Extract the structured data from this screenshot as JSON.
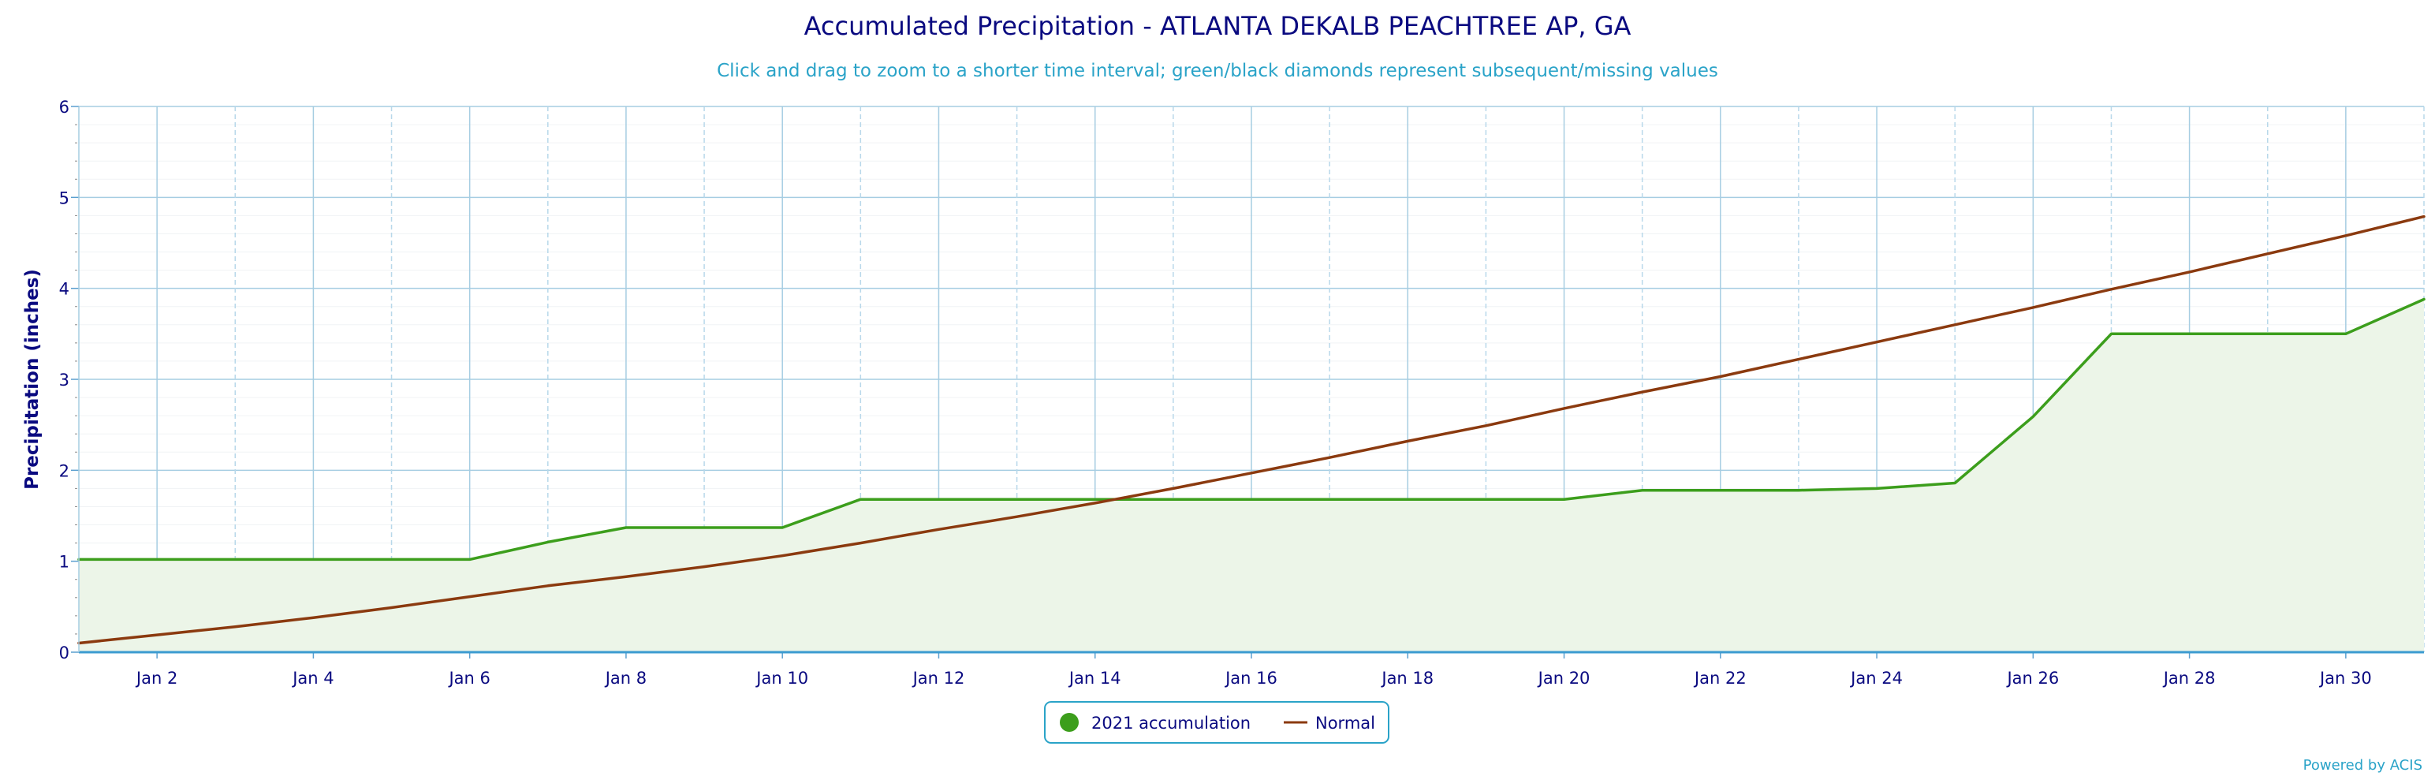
{
  "chart_data": {
    "type": "area",
    "title": "Accumulated Precipitation - ATLANTA DEKALB PEACHTREE AP, GA",
    "subtitle": "Click and drag to zoom to a shorter time interval; green/black diamonds represent subsequent/missing values",
    "ylabel": "Precipitation (inches)",
    "xlabel": "",
    "x_range": [
      1,
      31
    ],
    "ylim": [
      0,
      6
    ],
    "yticks": [
      0,
      1,
      2,
      3,
      4,
      5,
      6
    ],
    "xticks": [
      {
        "day": 2,
        "label": "Jan 2"
      },
      {
        "day": 4,
        "label": "Jan 4"
      },
      {
        "day": 6,
        "label": "Jan 6"
      },
      {
        "day": 8,
        "label": "Jan 8"
      },
      {
        "day": 10,
        "label": "Jan 10"
      },
      {
        "day": 12,
        "label": "Jan 12"
      },
      {
        "day": 14,
        "label": "Jan 14"
      },
      {
        "day": 16,
        "label": "Jan 16"
      },
      {
        "day": 18,
        "label": "Jan 18"
      },
      {
        "day": 20,
        "label": "Jan 20"
      },
      {
        "day": 22,
        "label": "Jan 22"
      },
      {
        "day": 24,
        "label": "Jan 24"
      },
      {
        "day": 26,
        "label": "Jan 26"
      },
      {
        "day": 28,
        "label": "Jan 28"
      },
      {
        "day": 30,
        "label": "Jan 30"
      }
    ],
    "grid": true,
    "legend_placement": "bottom-center",
    "series": [
      {
        "name": "2021 accumulation",
        "color": "#3c9e1c",
        "fill": "#ecf5e8",
        "x": [
          1,
          2,
          3,
          4,
          5,
          6,
          7,
          8,
          9,
          10,
          11,
          12,
          13,
          14,
          15,
          16,
          17,
          18,
          19,
          20,
          21,
          22,
          23,
          24,
          25,
          26,
          27,
          28,
          29,
          30,
          31
        ],
        "values": [
          1.02,
          1.02,
          1.02,
          1.02,
          1.02,
          1.02,
          1.21,
          1.37,
          1.37,
          1.37,
          1.68,
          1.68,
          1.68,
          1.68,
          1.68,
          1.68,
          1.68,
          1.68,
          1.68,
          1.68,
          1.78,
          1.78,
          1.78,
          1.8,
          1.86,
          2.59,
          3.5,
          3.5,
          3.5,
          3.5,
          3.88
        ]
      },
      {
        "name": "Normal",
        "color": "#8b3a0f",
        "x": [
          1,
          2,
          3,
          4,
          5,
          6,
          7,
          8,
          9,
          10,
          11,
          12,
          13,
          14,
          15,
          16,
          17,
          18,
          19,
          20,
          21,
          22,
          23,
          24,
          25,
          26,
          27,
          28,
          29,
          30,
          31
        ],
        "values": [
          0.1,
          0.19,
          0.28,
          0.38,
          0.49,
          0.61,
          0.73,
          0.83,
          0.94,
          1.06,
          1.2,
          1.35,
          1.49,
          1.64,
          1.8,
          1.97,
          2.14,
          2.32,
          2.49,
          2.68,
          2.86,
          3.03,
          3.22,
          3.41,
          3.6,
          3.79,
          3.99,
          4.18,
          4.38,
          4.58,
          4.79
        ]
      }
    ]
  },
  "credit": "Powered by ACIS"
}
